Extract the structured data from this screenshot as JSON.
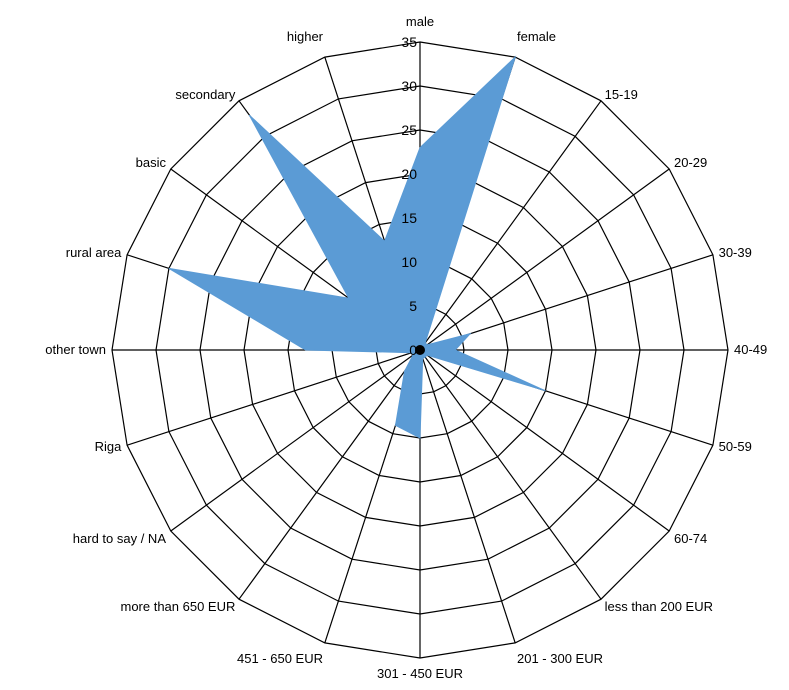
{
  "chart_data": {
    "type": "radar",
    "categories": [
      "male",
      "female",
      "15-19",
      "20-29",
      "30-39",
      "40-49",
      "50-59",
      "60-74",
      "less than 200 EUR",
      "201 - 300 EUR",
      "301 - 450 EUR",
      "451 - 650 EUR",
      "more than 650  EUR",
      "hard to say / NA",
      "Riga",
      "other town",
      "rural area",
      "basic",
      "secondary",
      "higher"
    ],
    "series": [
      {
        "values": [
          23,
          35,
          1,
          1,
          6,
          4,
          15,
          1,
          1,
          1,
          10,
          9,
          3,
          1,
          1,
          13,
          30,
          10,
          33,
          13
        ],
        "color": "#5b9bd5"
      }
    ],
    "ylim": [
      0,
      35
    ],
    "ticks": [
      "0",
      "5",
      "10",
      "15",
      "20",
      "25",
      "30",
      "35"
    ],
    "tick_values": [
      0,
      5,
      10,
      15,
      20,
      25,
      30,
      35
    ],
    "grid": true,
    "legend": "none"
  }
}
